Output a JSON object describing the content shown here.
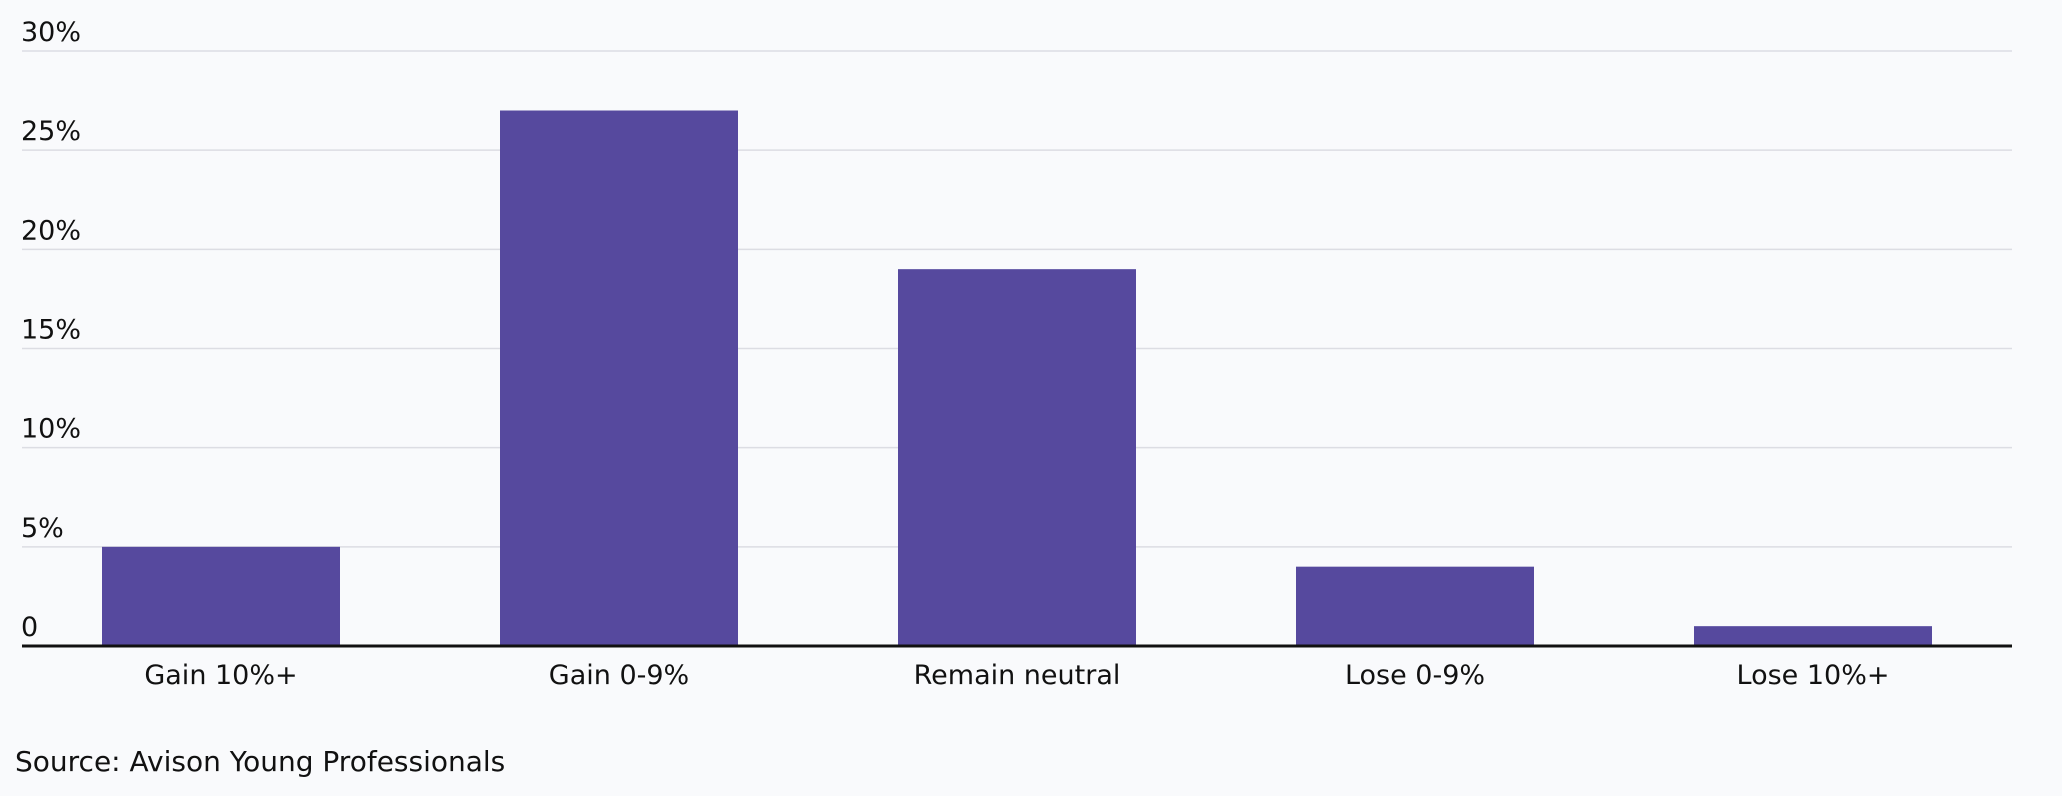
{
  "chart_data": {
    "type": "bar",
    "categories": [
      "Gain 10%+",
      "Gain 0-9%",
      "Remain neutral",
      "Lose 0-9%",
      "Lose 10%+"
    ],
    "values": [
      5,
      27,
      19,
      4,
      1
    ],
    "unit": "%",
    "ylim": [
      0,
      30
    ],
    "yticks": [
      0,
      5,
      10,
      15,
      20,
      25,
      30
    ],
    "ytick_labels": [
      "0",
      "5%",
      "10%",
      "15%",
      "20%",
      "25%",
      "30%"
    ],
    "grid": true,
    "title": "",
    "xlabel": "",
    "ylabel": "",
    "bar_color": "#56499e",
    "grid_color": "#dcdde3",
    "axis_color": "#111111"
  },
  "source": "Source: Avison Young Professionals"
}
